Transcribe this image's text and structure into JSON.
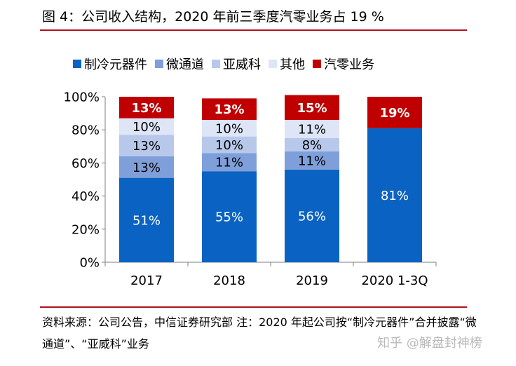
{
  "figure": {
    "title": "图 4：公司收入结构，2020 年前三季度汽零业务占 19 %",
    "source_note": "资料来源：公司公告，中信证券研究部  注：2020 年起公司按“制冷元器件”合并披露“微通道”、“亚威科”业务",
    "watermark": "知乎 @解盘封神榜"
  },
  "chart_data": {
    "type": "bar",
    "stacked": true,
    "categories": [
      "2017",
      "2018",
      "2019",
      "2020 1-3Q"
    ],
    "series": [
      {
        "name": "制冷元器件",
        "color": "#0a63c2",
        "values": [
          51,
          55,
          56,
          81
        ],
        "labels": [
          "51%",
          "55%",
          "56%",
          "81%"
        ]
      },
      {
        "name": "微通道",
        "color": "#7f9fda",
        "values": [
          13,
          11,
          11,
          0
        ],
        "labels": [
          "13%",
          "11%",
          "11%",
          ""
        ]
      },
      {
        "name": "亚威科",
        "color": "#b7c8ea",
        "values": [
          13,
          10,
          8,
          0
        ],
        "labels": [
          "13%",
          "10%",
          "8%",
          ""
        ]
      },
      {
        "name": "其他",
        "color": "#dde5f6",
        "values": [
          10,
          10,
          11,
          0
        ],
        "labels": [
          "10%",
          "10%",
          "11%",
          ""
        ]
      },
      {
        "name": "汽零业务",
        "color": "#c00000",
        "values": [
          13,
          13,
          15,
          19
        ],
        "labels": [
          "13%",
          "13%",
          "15%",
          "19%"
        ]
      }
    ],
    "y_ticks": [
      "0%",
      "20%",
      "40%",
      "60%",
      "80%",
      "100%"
    ],
    "ylim": [
      0,
      100
    ],
    "grid": false,
    "legend_position": "top"
  }
}
